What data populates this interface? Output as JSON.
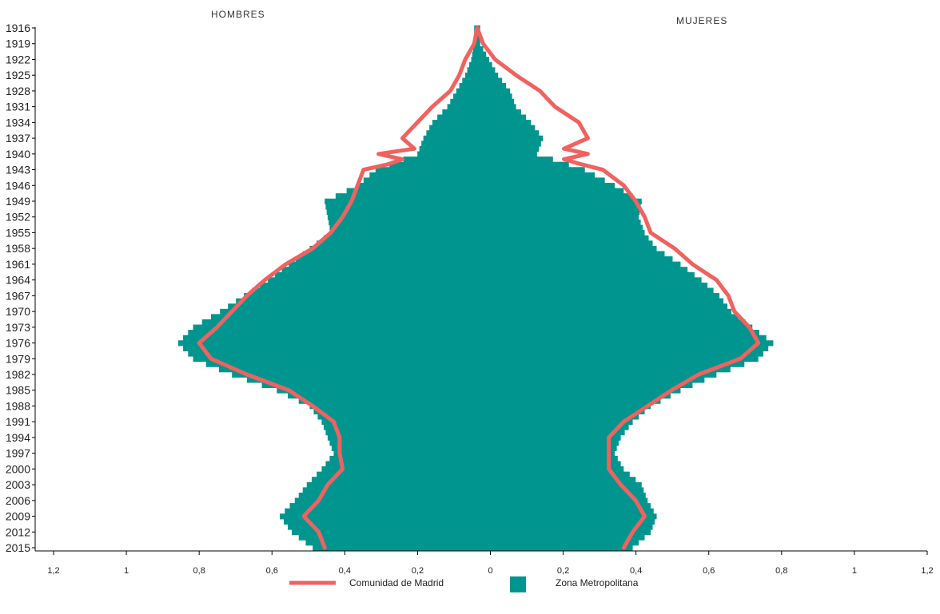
{
  "chart_data": {
    "type": "population-pyramid",
    "left_header": "HOMBRES",
    "right_header": "MUJERES",
    "x_tick_labels": [
      "1,2",
      "1",
      "0,8",
      "0,6",
      "0,4",
      "0,2",
      "0",
      "0,2",
      "0,4",
      "0,6",
      "0,8",
      "1",
      "1,2"
    ],
    "x_range": [
      -1.2,
      1.2
    ],
    "y_tick_labels": [
      "1916",
      "1919",
      "1922",
      "1925",
      "1928",
      "1931",
      "1934",
      "1937",
      "1940",
      "1943",
      "1946",
      "1949",
      "1952",
      "1955",
      "1958",
      "1961",
      "1964",
      "1967",
      "1970",
      "1973",
      "1976",
      "1979",
      "1982",
      "1985",
      "1988",
      "1991",
      "1994",
      "1997",
      "2000",
      "2003",
      "2006",
      "2009",
      "2012",
      "2015"
    ],
    "legend": [
      {
        "label": "Comunidad de Madrid",
        "color": "#f0625f",
        "kind": "line"
      },
      {
        "label": "Zona Metropolitana",
        "color": "#00968f",
        "kind": "box"
      }
    ],
    "bar_color": "#00968f",
    "line_color": "#f0625f",
    "series": [
      {
        "name": "Zona Metropolitana",
        "kind": "bars",
        "years": [
          1916,
          1919,
          1922,
          1925,
          1928,
          1931,
          1934,
          1937,
          1940,
          1943,
          1946,
          1949,
          1952,
          1955,
          1958,
          1961,
          1964,
          1967,
          1970,
          1973,
          1976,
          1979,
          1982,
          1985,
          1988,
          1991,
          1994,
          1997,
          2000,
          2003,
          2006,
          2009,
          2012,
          2015
        ],
        "hombres": [
          0.01,
          0.01,
          0.02,
          0.04,
          0.07,
          0.1,
          0.15,
          0.18,
          0.2,
          0.34,
          0.4,
          0.51,
          0.5,
          0.49,
          0.56,
          0.63,
          0.7,
          0.78,
          0.86,
          0.95,
          1.0,
          0.95,
          0.82,
          0.67,
          0.56,
          0.52,
          0.5,
          0.48,
          0.52,
          0.57,
          0.61,
          0.66,
          0.62,
          0.55
        ],
        "mujeres": [
          0.01,
          0.01,
          0.04,
          0.07,
          0.11,
          0.13,
          0.18,
          0.22,
          0.2,
          0.36,
          0.46,
          0.55,
          0.54,
          0.56,
          0.6,
          0.68,
          0.75,
          0.81,
          0.85,
          0.92,
          0.99,
          0.94,
          0.8,
          0.68,
          0.58,
          0.52,
          0.48,
          0.46,
          0.49,
          0.55,
          0.57,
          0.6,
          0.58,
          0.52
        ]
      },
      {
        "name": "Comunidad de Madrid",
        "kind": "lines",
        "years": [
          1916,
          1919,
          1922,
          1925,
          1928,
          1931,
          1934,
          1937,
          1939,
          1940,
          1941,
          1942,
          1943,
          1946,
          1949,
          1952,
          1955,
          1958,
          1961,
          1964,
          1967,
          1970,
          1973,
          1976,
          1979,
          1982,
          1985,
          1988,
          1991,
          1994,
          1997,
          2000,
          2003,
          2006,
          2009,
          2012,
          2015
        ],
        "hombres": [
          0.0,
          0.01,
          0.04,
          0.06,
          0.09,
          0.15,
          0.2,
          0.25,
          0.21,
          0.33,
          0.25,
          0.3,
          0.38,
          0.4,
          0.42,
          0.45,
          0.49,
          0.55,
          0.64,
          0.71,
          0.77,
          0.82,
          0.87,
          0.93,
          0.89,
          0.77,
          0.63,
          0.55,
          0.48,
          0.46,
          0.46,
          0.45,
          0.5,
          0.53,
          0.58,
          0.53,
          0.51
        ],
        "mujeres": [
          0.0,
          0.02,
          0.06,
          0.13,
          0.21,
          0.26,
          0.34,
          0.37,
          0.29,
          0.37,
          0.29,
          0.35,
          0.42,
          0.49,
          0.53,
          0.56,
          0.58,
          0.66,
          0.72,
          0.8,
          0.84,
          0.86,
          0.91,
          0.94,
          0.88,
          0.74,
          0.65,
          0.57,
          0.49,
          0.44,
          0.44,
          0.44,
          0.48,
          0.53,
          0.56,
          0.52,
          0.49
        ]
      }
    ]
  }
}
